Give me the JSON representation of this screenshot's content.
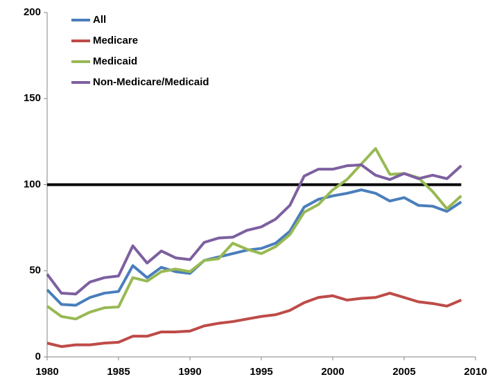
{
  "chart_data": {
    "type": "line",
    "x": [
      1980,
      1981,
      1982,
      1983,
      1984,
      1985,
      1986,
      1987,
      1988,
      1989,
      1990,
      1991,
      1992,
      1993,
      1994,
      1995,
      1996,
      1997,
      1998,
      1999,
      2000,
      2001,
      2002,
      2003,
      2004,
      2005,
      2006,
      2007,
      2008,
      2009
    ],
    "series": [
      {
        "name": "All",
        "color": "#4a7ebb",
        "values": [
          39,
          30.5,
          30,
          34.5,
          37,
          38,
          53,
          46,
          52,
          49.5,
          48.5,
          56,
          58,
          60,
          62,
          63,
          66,
          73,
          87,
          91.5,
          93.5,
          95,
          97,
          95,
          90.5,
          92.5,
          88,
          87.5,
          84.5,
          90
        ]
      },
      {
        "name": "Medicare",
        "color": "#be4b48",
        "values": [
          8,
          6,
          7,
          7,
          8,
          8.5,
          12,
          12,
          14.5,
          14.5,
          15,
          18,
          19.5,
          20.5,
          22,
          23.5,
          24.5,
          27,
          31.5,
          34.5,
          35.5,
          33,
          34,
          34.5,
          37,
          34.5,
          32,
          31,
          29.5,
          33
        ]
      },
      {
        "name": "Medicaid",
        "color": "#98b954",
        "values": [
          29.5,
          23.5,
          22,
          26,
          28.5,
          29,
          46,
          44,
          49.5,
          51,
          49.5,
          56,
          57,
          66,
          62.5,
          60,
          64,
          71,
          84,
          88.5,
          97,
          103,
          112,
          121,
          106,
          106.5,
          104,
          96,
          86,
          93.5
        ]
      },
      {
        "name": "Non-Medicare/Medicaid",
        "color": "#7d60a0",
        "values": [
          48,
          37,
          36.5,
          43.5,
          46,
          47,
          64.5,
          54.5,
          61.5,
          57.5,
          56.5,
          66.5,
          69,
          69.5,
          73.5,
          75.5,
          80,
          88,
          105,
          109,
          109,
          111,
          111.5,
          105.5,
          103,
          106.5,
          103.5,
          105.5,
          103.5,
          111
        ]
      }
    ],
    "reference_line": {
      "value": 100,
      "color": "#000000"
    },
    "xlim": [
      1980,
      2010
    ],
    "xticks": [
      1980,
      1985,
      1990,
      1995,
      2000,
      2005,
      2010
    ],
    "ylim": [
      0,
      200
    ],
    "yticks": [
      0,
      50,
      100,
      150,
      200
    ],
    "legend": "top-left"
  }
}
